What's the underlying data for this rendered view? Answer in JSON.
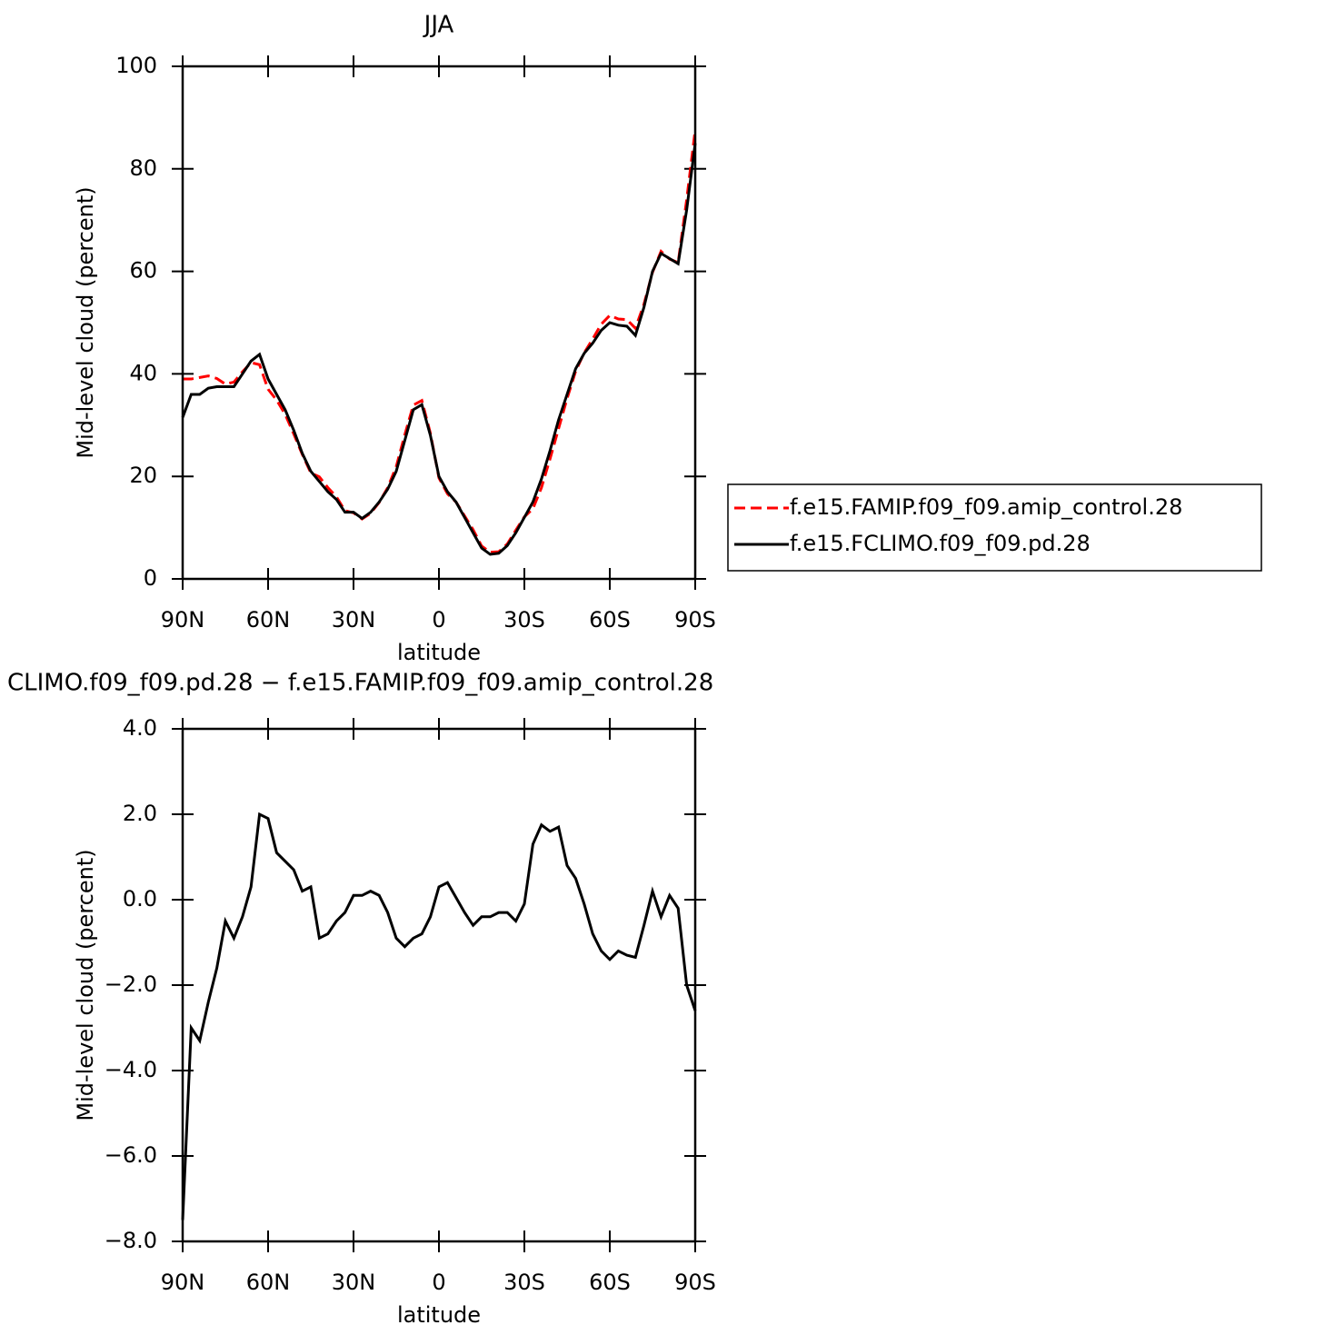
{
  "chart_data": [
    {
      "type": "line",
      "title": "JJA",
      "xlabel": "latitude",
      "ylabel": "Mid-level cloud (percent)",
      "x": [
        90,
        87,
        84,
        81,
        78,
        75,
        72,
        69,
        66,
        63,
        60,
        57,
        54,
        51,
        48,
        45,
        42,
        39,
        36,
        33,
        30,
        27,
        24,
        21,
        18,
        15,
        12,
        9,
        6,
        3,
        0,
        -3,
        -6,
        -9,
        -12,
        -15,
        -18,
        -21,
        -24,
        -27,
        -30,
        -33,
        -36,
        -39,
        -42,
        -45,
        -48,
        -51,
        -54,
        -57,
        -60,
        -63,
        -66,
        -69,
        -72,
        -75,
        -78,
        -81,
        -84,
        -87,
        -90
      ],
      "series": [
        {
          "name": "f.e15.FAMIP.f09_f09.amip_control.28",
          "color": "#ff0000",
          "line_style": "dashed",
          "values": [
            39,
            39,
            39.3,
            39.6,
            39.1,
            38,
            38.4,
            40.4,
            42.2,
            41.8,
            37,
            34.9,
            32.1,
            28.3,
            24.3,
            20.7,
            19.9,
            17.8,
            16,
            13.3,
            12.9,
            11.7,
            12.8,
            14.9,
            17.8,
            21.9,
            28.1,
            33.9,
            34.8,
            28.4,
            19.7,
            16.6,
            15,
            12.3,
            9.6,
            6.4,
            5.2,
            5.3,
            6.8,
            9.5,
            12.1,
            13.7,
            17.8,
            23.4,
            29.3,
            35.2,
            40.5,
            44.1,
            46.8,
            49.7,
            51.4,
            50.7,
            50.6,
            48.9,
            53.6,
            59.8,
            63.9,
            62.4,
            61.7,
            74,
            87.6
          ]
        },
        {
          "name": "f.e15.FCLIMO.f09_f09.pd.28",
          "color": "#000000",
          "line_style": "solid",
          "values": [
            31.5,
            36,
            36,
            37.2,
            37.5,
            37.5,
            37.5,
            40,
            42.5,
            43.8,
            39,
            36,
            33,
            29,
            24.5,
            21,
            19,
            17,
            15.5,
            13,
            13,
            11.8,
            13,
            15,
            17.5,
            21,
            27,
            33,
            34,
            28,
            20,
            17,
            15,
            12,
            9,
            6,
            4.8,
            5,
            6.5,
            9,
            12,
            15,
            19.5,
            25,
            31,
            36,
            41,
            44,
            46,
            48.5,
            50,
            49.5,
            49.3,
            47.5,
            53,
            60,
            63.5,
            62.5,
            61.5,
            72,
            85
          ]
        }
      ],
      "xlim": [
        90,
        -90
      ],
      "xticks": [
        {
          "value": 90,
          "label": "90N"
        },
        {
          "value": 60,
          "label": "60N"
        },
        {
          "value": 30,
          "label": "30N"
        },
        0,
        {
          "value": -30,
          "label": "30S"
        },
        {
          "value": -60,
          "label": "60S"
        },
        {
          "value": -90,
          "label": "90S"
        }
      ],
      "ylim": [
        0,
        100
      ],
      "yticks": [
        0,
        20,
        40,
        60,
        80,
        100
      ],
      "legend": "right"
    },
    {
      "type": "line",
      "title": "CLIMO.f09_f09.pd.28 − f.e15.FAMIP.f09_f09.amip_control.28",
      "xlabel": "latitude",
      "ylabel": "Mid-level cloud (percent)",
      "x": [
        90,
        87,
        84,
        81,
        78,
        75,
        72,
        69,
        66,
        63,
        60,
        57,
        54,
        51,
        48,
        45,
        42,
        39,
        36,
        33,
        30,
        27,
        24,
        21,
        18,
        15,
        12,
        9,
        6,
        3,
        0,
        -3,
        -6,
        -9,
        -12,
        -15,
        -18,
        -21,
        -24,
        -27,
        -30,
        -33,
        -36,
        -39,
        -42,
        -45,
        -48,
        -51,
        -54,
        -57,
        -60,
        -63,
        -66,
        -69,
        -72,
        -75,
        -78,
        -81,
        -84,
        -87,
        -90
      ],
      "series": [
        {
          "color": "#000000",
          "line_style": "solid",
          "values": [
            -7.5,
            -3,
            -3.3,
            -2.4,
            -1.6,
            -0.5,
            -0.9,
            -0.4,
            0.3,
            2,
            1.9,
            1.1,
            0.9,
            0.7,
            0.2,
            0.3,
            -0.9,
            -0.8,
            -0.5,
            -0.3,
            0.1,
            0.1,
            0.2,
            0.1,
            -0.3,
            -0.9,
            -1.1,
            -0.9,
            -0.8,
            -0.4,
            0.3,
            0.4,
            0.05,
            -0.3,
            -0.6,
            -0.4,
            -0.4,
            -0.3,
            -0.3,
            -0.5,
            -0.1,
            1.3,
            1.75,
            1.6,
            1.7,
            0.8,
            0.5,
            -0.1,
            -0.8,
            -1.2,
            -1.4,
            -1.2,
            -1.3,
            -1.35,
            -0.6,
            0.2,
            -0.4,
            0.1,
            -0.2,
            -2,
            -2.6
          ]
        }
      ],
      "xlim": [
        90,
        -90
      ],
      "xticks": [
        {
          "value": 90,
          "label": "90N"
        },
        {
          "value": 60,
          "label": "60N"
        },
        {
          "value": 30,
          "label": "30N"
        },
        0,
        {
          "value": -30,
          "label": "30S"
        },
        {
          "value": -60,
          "label": "60S"
        },
        {
          "value": -90,
          "label": "90S"
        }
      ],
      "ylim": [
        -8,
        4
      ],
      "yticks": [
        {
          "value": -8,
          "label": "−8.0"
        },
        {
          "value": -6,
          "label": "−6.0"
        },
        {
          "value": -4,
          "label": "−4.0"
        },
        {
          "value": -2,
          "label": "−2.0"
        },
        {
          "value": 0,
          "label": "0.0"
        },
        {
          "value": 2,
          "label": "2.0"
        },
        {
          "value": 4,
          "label": "4.0"
        }
      ]
    }
  ]
}
